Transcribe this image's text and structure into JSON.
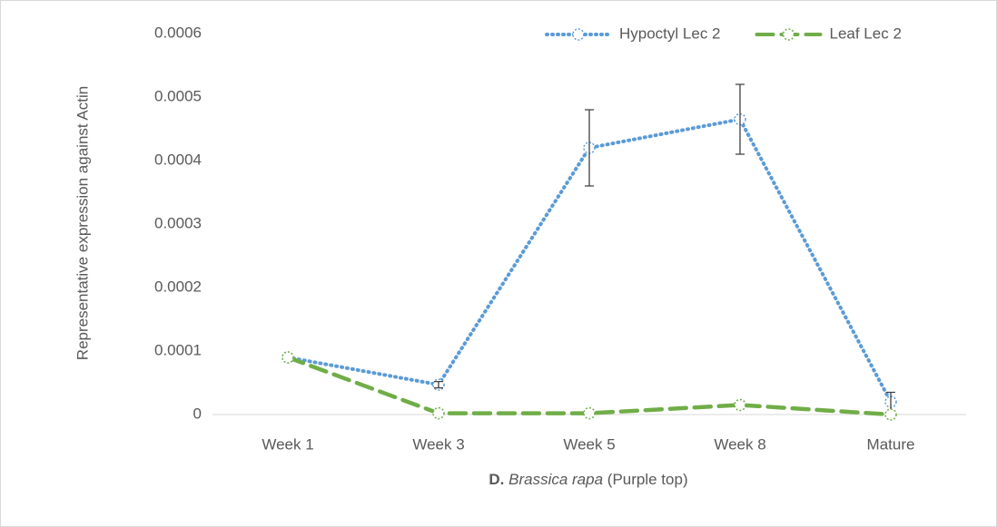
{
  "chart_data": {
    "type": "line",
    "y_label": "Representative expression against Actin",
    "x_label": [
      "D.",
      "Brassica rapa",
      "(Purple top)"
    ],
    "categories": [
      "Week 1",
      "Week 3",
      "Week 5",
      "Week 8",
      "Mature"
    ],
    "series": [
      {
        "name": "Hypoctyl Lec 2",
        "color": "#5b9bd5",
        "style": "dotted",
        "values": [
          9e-05,
          4.7e-05,
          0.00042,
          0.000465,
          2e-05
        ],
        "errors": [
          null,
          5e-06,
          6e-05,
          5.5e-05,
          1.5e-05
        ]
      },
      {
        "name": "Leaf Lec 2",
        "color": "#70ad47",
        "style": "dashed",
        "values": [
          9e-05,
          2e-06,
          2e-06,
          1.5e-05,
          0
        ]
      }
    ],
    "ylim": [
      0,
      0.0006
    ],
    "yticks": [
      0,
      0.0001,
      0.0002,
      0.0003,
      0.0004,
      0.0005,
      0.0006
    ],
    "grid": false,
    "legend": "top-right"
  }
}
